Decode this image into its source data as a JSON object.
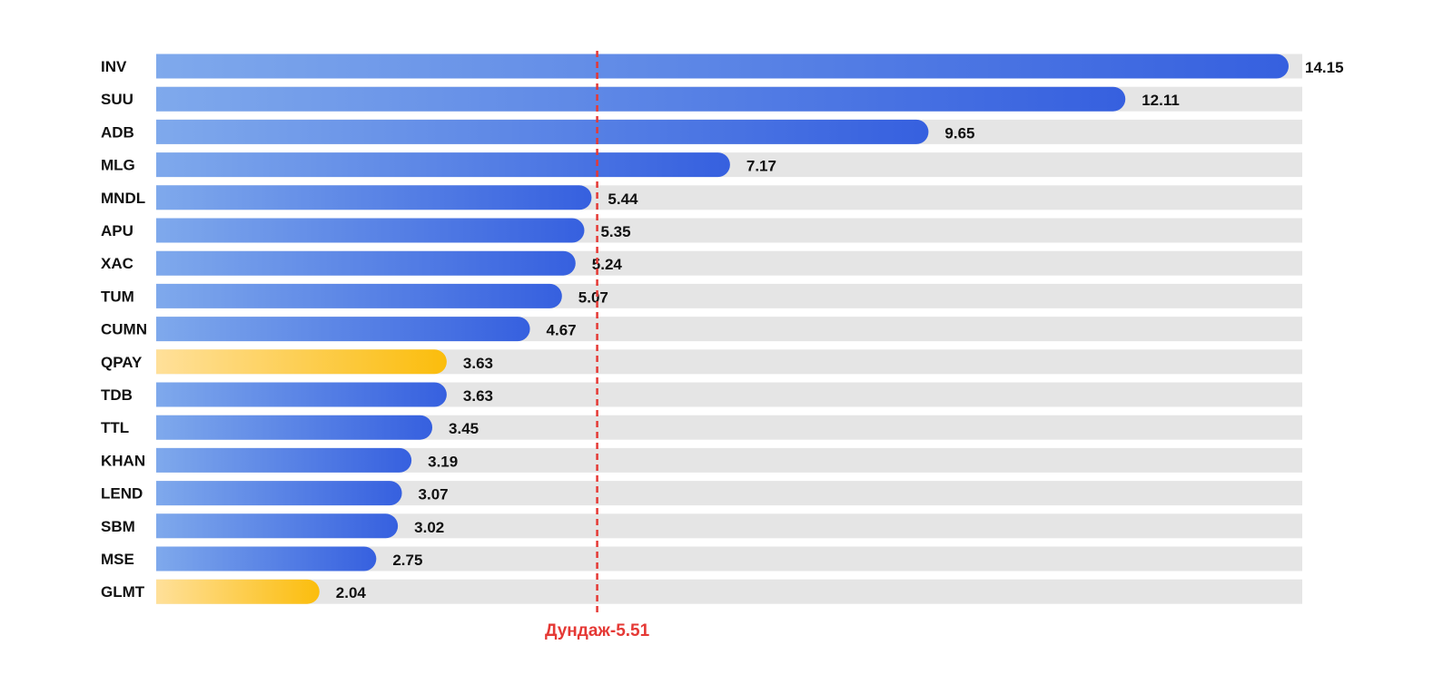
{
  "chart_data": {
    "type": "bar",
    "orientation": "horizontal",
    "categories": [
      "INV",
      "SUU",
      "ADB",
      "MLG",
      "MNDL",
      "APU",
      "XAC",
      "TUM",
      "CUMN",
      "QPAY",
      "TDB",
      "TTL",
      "KHAN",
      "LEND",
      "SBM",
      "MSE",
      "GLMT"
    ],
    "values": [
      14.15,
      12.11,
      9.65,
      7.17,
      5.44,
      5.35,
      5.24,
      5.07,
      4.67,
      3.63,
      3.63,
      3.45,
      3.19,
      3.07,
      3.02,
      2.75,
      2.04
    ],
    "value_labels": [
      "14.15",
      "12.11",
      "9.65",
      "7.17",
      "5.44",
      "5.35",
      "5.24",
      "5.07",
      "4.67",
      "3.63",
      "3.63",
      "3.45",
      "3.19",
      "3.07",
      "3.02",
      "2.75",
      "2.04"
    ],
    "highlighted": [
      "QPAY",
      "GLMT"
    ],
    "xlim": [
      0,
      14.15
    ],
    "reference_line": {
      "value": 5.51,
      "label": "Дундаж-5.51"
    },
    "grid": false,
    "legend": "none",
    "colors": {
      "bar_start": "#7fa9ec",
      "bar_end": "#3660df",
      "highlight_start": "#ffe09a",
      "highlight_end": "#fbbd0c",
      "track": "#e5e5e5",
      "reference": "#e53935",
      "text": "#111111"
    }
  }
}
